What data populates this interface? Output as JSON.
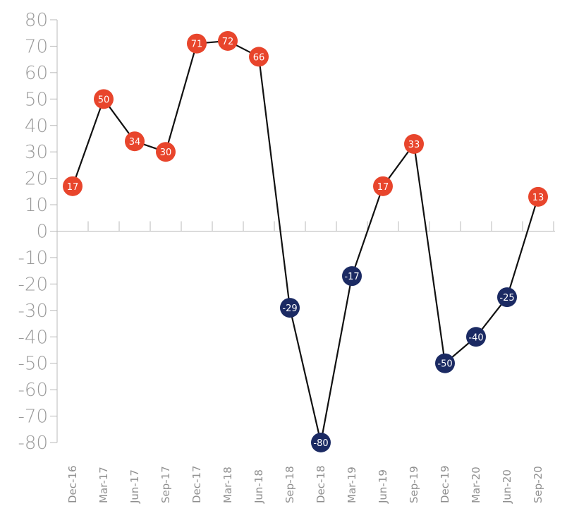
{
  "chart_data": {
    "type": "line",
    "title": "",
    "xlabel": "",
    "ylabel": "",
    "categories": [
      "Dec-16",
      "Mar-17",
      "Jun-17",
      "Sep-17",
      "Dec-17",
      "Mar-18",
      "Jun-18",
      "Sep-18",
      "Dec-18",
      "Mar-19",
      "Jun-19",
      "Sep-19",
      "Dec-19",
      "Mar-20",
      "Jun-20",
      "Sep-20"
    ],
    "values": [
      17,
      50,
      34,
      30,
      71,
      72,
      66,
      -29,
      -80,
      -17,
      17,
      33,
      -50,
      -40,
      -25,
      13
    ],
    "ylim": [
      -80,
      80
    ],
    "yticks": [
      80,
      70,
      60,
      50,
      40,
      30,
      20,
      10,
      0,
      -10,
      -20,
      -30,
      -40,
      -50,
      -60,
      -70,
      -80
    ],
    "grid": false,
    "legend": "none",
    "colors": {
      "positive_marker": "#e8452c",
      "negative_marker": "#1b2a63",
      "line": "#111111",
      "axis": "#b8b8b8",
      "tick_text": "#9a9a9a"
    }
  }
}
